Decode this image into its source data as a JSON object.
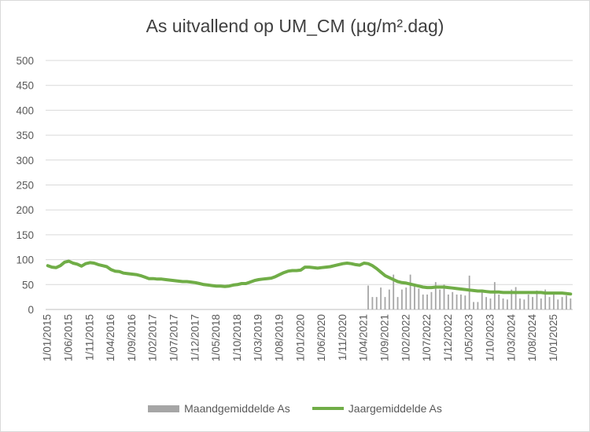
{
  "chart_data": {
    "type": "bar+line",
    "title": "As uitvallend op UM_CM (µg/m².dag)",
    "ylim": [
      0,
      500
    ],
    "yticks": [
      0,
      50,
      100,
      150,
      200,
      250,
      300,
      350,
      400,
      450,
      500
    ],
    "x_range": [
      "2015-01",
      "2025-05"
    ],
    "xtick_labels": [
      "1/01/2015",
      "1/06/2015",
      "1/11/2015",
      "1/04/2016",
      "1/09/2016",
      "1/02/2017",
      "1/07/2017",
      "1/12/2017",
      "1/05/2018",
      "1/10/2018",
      "1/03/2019",
      "1/08/2019",
      "1/01/2020",
      "1/06/2020",
      "1/11/2020",
      "1/04/2021",
      "1/09/2021",
      "1/02/2022",
      "1/07/2022",
      "1/12/2022",
      "1/05/2023",
      "1/10/2023",
      "1/03/2024",
      "1/08/2024",
      "1/01/2025"
    ],
    "grid": "horizontal",
    "legend_position": "bottom",
    "series": [
      {
        "name": "Maandgemiddelde As",
        "kind": "bar",
        "color": "#a6a6a6",
        "x": [
          "2021-05",
          "2021-06",
          "2021-07",
          "2021-08",
          "2021-09",
          "2021-10",
          "2021-11",
          "2021-12",
          "2022-01",
          "2022-02",
          "2022-03",
          "2022-04",
          "2022-05",
          "2022-06",
          "2022-07",
          "2022-08",
          "2022-09",
          "2022-10",
          "2022-11",
          "2022-12",
          "2023-01",
          "2023-02",
          "2023-03",
          "2023-04",
          "2023-05",
          "2023-06",
          "2023-07",
          "2023-08",
          "2023-09",
          "2023-10",
          "2023-11",
          "2023-12",
          "2024-01",
          "2024-02",
          "2024-03",
          "2024-04",
          "2024-05",
          "2024-06",
          "2024-07",
          "2024-08",
          "2024-09",
          "2024-10",
          "2024-11",
          "2024-12",
          "2025-01",
          "2025-02",
          "2025-03",
          "2025-04",
          "2025-05"
        ],
        "values": [
          48,
          25,
          25,
          44,
          25,
          40,
          70,
          25,
          40,
          44,
          70,
          50,
          42,
          30,
          30,
          35,
          55,
          40,
          50,
          30,
          35,
          30,
          30,
          28,
          68,
          15,
          15,
          38,
          25,
          22,
          55,
          30,
          22,
          20,
          40,
          45,
          22,
          20,
          30,
          25,
          38,
          22,
          40,
          25,
          30,
          20,
          25,
          28,
          22
        ]
      },
      {
        "name": "Jaargemiddelde As",
        "kind": "line",
        "color": "#70ad47",
        "x": [
          "2015-01",
          "2015-02",
          "2015-03",
          "2015-04",
          "2015-05",
          "2015-06",
          "2015-07",
          "2015-08",
          "2015-09",
          "2015-10",
          "2015-11",
          "2015-12",
          "2016-01",
          "2016-02",
          "2016-03",
          "2016-04",
          "2016-05",
          "2016-06",
          "2016-07",
          "2016-08",
          "2016-09",
          "2016-10",
          "2016-11",
          "2016-12",
          "2017-01",
          "2017-02",
          "2017-03",
          "2017-04",
          "2017-05",
          "2017-06",
          "2017-07",
          "2017-08",
          "2017-09",
          "2017-10",
          "2017-11",
          "2017-12",
          "2018-01",
          "2018-02",
          "2018-03",
          "2018-04",
          "2018-05",
          "2018-06",
          "2018-07",
          "2018-08",
          "2018-09",
          "2018-10",
          "2018-11",
          "2018-12",
          "2019-01",
          "2019-02",
          "2019-03",
          "2019-04",
          "2019-05",
          "2019-06",
          "2019-07",
          "2019-08",
          "2019-09",
          "2019-10",
          "2019-11",
          "2019-12",
          "2020-01",
          "2020-02",
          "2020-03",
          "2020-04",
          "2020-05",
          "2020-06",
          "2020-07",
          "2020-08",
          "2020-09",
          "2020-10",
          "2020-11",
          "2020-12",
          "2021-01",
          "2021-02",
          "2021-03",
          "2021-04",
          "2021-05",
          "2021-06",
          "2021-07",
          "2021-08",
          "2021-09",
          "2021-10",
          "2021-11",
          "2021-12",
          "2022-01",
          "2022-02",
          "2022-03",
          "2022-04",
          "2022-05",
          "2022-06",
          "2022-07",
          "2022-08",
          "2022-09",
          "2022-10",
          "2022-11",
          "2022-12",
          "2023-01",
          "2023-02",
          "2023-03",
          "2023-04",
          "2023-05",
          "2023-06",
          "2023-07",
          "2023-08",
          "2023-09",
          "2023-10",
          "2023-11",
          "2023-12",
          "2024-01",
          "2024-02",
          "2024-03",
          "2024-04",
          "2024-05",
          "2024-06",
          "2024-07",
          "2024-08",
          "2024-09",
          "2024-10",
          "2024-11",
          "2024-12",
          "2025-01",
          "2025-02",
          "2025-03",
          "2025-04",
          "2025-05"
        ],
        "values": [
          88,
          85,
          84,
          88,
          95,
          97,
          93,
          91,
          87,
          92,
          94,
          93,
          90,
          88,
          86,
          80,
          77,
          76,
          73,
          72,
          71,
          70,
          68,
          65,
          62,
          62,
          61,
          61,
          60,
          59,
          58,
          57,
          56,
          56,
          55,
          54,
          52,
          50,
          49,
          48,
          47,
          47,
          46,
          47,
          49,
          50,
          52,
          52,
          55,
          58,
          60,
          61,
          62,
          63,
          66,
          70,
          74,
          77,
          78,
          78,
          79,
          85,
          85,
          84,
          83,
          84,
          85,
          86,
          88,
          90,
          92,
          93,
          92,
          90,
          89,
          93,
          92,
          88,
          82,
          75,
          68,
          64,
          60,
          56,
          54,
          53,
          51,
          49,
          47,
          45,
          44,
          44,
          45,
          45,
          45,
          44,
          43,
          42,
          41,
          40,
          39,
          38,
          37,
          37,
          36,
          35,
          35,
          35,
          34,
          34,
          34,
          34,
          34,
          34,
          34,
          34,
          34,
          34,
          33,
          33,
          33,
          33,
          33,
          32,
          31
        ]
      }
    ]
  }
}
